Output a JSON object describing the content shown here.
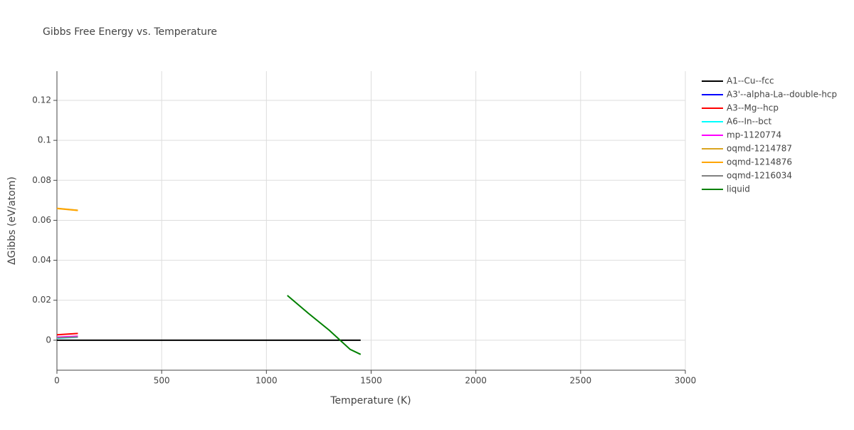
{
  "chart_data": {
    "type": "line",
    "title": "Gibbs Free Energy vs. Temperature",
    "x_label": "Temperature (K)",
    "y_label": "ΔGibbs (eV/atom)",
    "xlim": [
      0,
      3000
    ],
    "xticks": [
      0,
      500,
      1000,
      1500,
      2000,
      2500,
      3000
    ],
    "ylim": [
      -0.015,
      0.1346
    ],
    "yticks": [
      0,
      0.02,
      0.04,
      0.06,
      0.08,
      0.1,
      0.12
    ],
    "grid": true,
    "legend": "right",
    "series": [
      {
        "name": "A1--Cu--fcc",
        "color": "#000000",
        "x": [
          0,
          1450
        ],
        "values": [
          0,
          0
        ]
      },
      {
        "name": "A3'--alpha-La--double-hcp",
        "color": "#0000ff",
        "x": [
          0,
          100
        ],
        "values": [
          0.0011,
          0.0018
        ]
      },
      {
        "name": "A3--Mg--hcp",
        "color": "#ff0000",
        "x": [
          0,
          100
        ],
        "values": [
          0.0027,
          0.0034
        ]
      },
      {
        "name": "A6--In--bct",
        "color": "#00ffff",
        "x": [
          0,
          100
        ],
        "values": [
          0.001,
          0.0015
        ]
      },
      {
        "name": "mp-1120774",
        "color": "#ff00ff",
        "x": [
          0,
          100
        ],
        "values": [
          0.0015,
          0.002
        ]
      },
      {
        "name": "oqmd-1214787",
        "color": "#daa520",
        "x": [
          0,
          100
        ],
        "values": [
          0.066,
          0.065
        ]
      },
      {
        "name": "oqmd-1214876",
        "color": "#ffa500",
        "x": [
          0,
          100
        ],
        "values": [
          0.0659,
          0.0649
        ]
      },
      {
        "name": "oqmd-1216034",
        "color": "#808080",
        "x": [
          0,
          100
        ],
        "values": [
          0.0012,
          0.0016
        ]
      },
      {
        "name": "liquid",
        "color": "#008000",
        "x": [
          1100,
          1200,
          1300,
          1400,
          1450
        ],
        "values": [
          0.0224,
          0.0135,
          0.005,
          -0.0046,
          -0.0071
        ]
      }
    ]
  }
}
